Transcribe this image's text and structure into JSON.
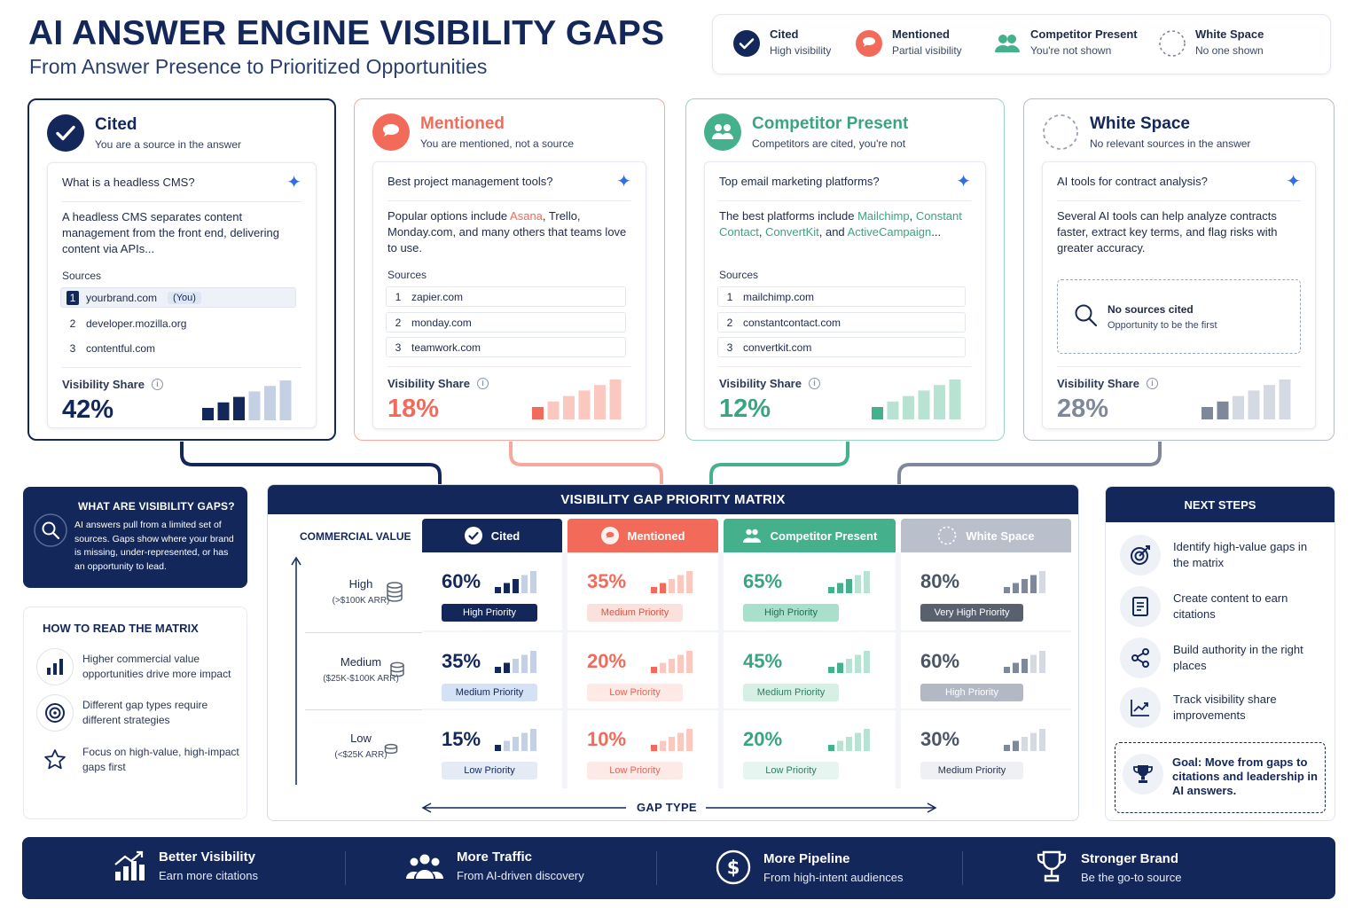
{
  "header": {
    "title": "AI ANSWER ENGINE VISIBILITY GAPS",
    "subtitle": "From Answer Presence to Prioritized Opportunities"
  },
  "legend": [
    {
      "title": "Cited",
      "desc": "High visibility",
      "icon": "check-circle-icon",
      "color": "#13275a"
    },
    {
      "title": "Mentioned",
      "desc": "Partial visibility",
      "icon": "speech-bubble-icon",
      "color": "#f26a5a"
    },
    {
      "title": "Competitor Present",
      "desc": "You're not shown",
      "icon": "people-icon",
      "color": "#45b08c"
    },
    {
      "title": "White Space",
      "desc": "No one shown",
      "icon": "dashed-circle-icon",
      "color": "#7f889b"
    }
  ],
  "cards": {
    "cited": {
      "title": "Cited",
      "subtitle": "You are a source in the answer",
      "question": "What is a headless CMS?",
      "answer": "A headless CMS separates content management from the front end, delivering content via APIs...",
      "sources_label": "Sources",
      "sources": [
        {
          "n": "1",
          "domain": "yourbrand.com",
          "tag": "(You)"
        },
        {
          "n": "2",
          "domain": "developer.mozilla.org"
        },
        {
          "n": "3",
          "domain": "contentful.com"
        }
      ],
      "vs_label": "Visibility Share",
      "vs_value": "42%",
      "vs_fraction": 0.42,
      "color": "#13275a"
    },
    "mentioned": {
      "title": "Mentioned",
      "subtitle": "You are mentioned, not a source",
      "question": "Best project management tools?",
      "answer_pre": "Popular options include ",
      "answer_hl": "Asana",
      "answer_post": ", Trello, Monday.com, and many others that teams love to use.",
      "sources_label": "Sources",
      "sources": [
        {
          "n": "1",
          "domain": "zapier.com"
        },
        {
          "n": "2",
          "domain": "monday.com"
        },
        {
          "n": "3",
          "domain": "teamwork.com"
        }
      ],
      "vs_label": "Visibility Share",
      "vs_value": "18%",
      "vs_fraction": 0.18,
      "color": "#f26a5a"
    },
    "competitor": {
      "title": "Competitor Present",
      "subtitle": "Competitors are cited, you're not",
      "question": "Top email marketing platforms?",
      "answer_pre": "The best platforms include ",
      "hl1": "Mailchimp",
      "sep1": ",",
      "hl2": "Constant Contact",
      "sep2": ", ",
      "hl3": "ConvertKit",
      "sep3": ", and",
      "hl4": "ActiveCampaign",
      "end": "...",
      "sources_label": "Sources",
      "sources": [
        {
          "n": "1",
          "domain": "mailchimp.com"
        },
        {
          "n": "2",
          "domain": "constantcontact.com"
        },
        {
          "n": "3",
          "domain": "convertkit.com"
        }
      ],
      "vs_label": "Visibility Share",
      "vs_value": "12%",
      "vs_fraction": 0.12,
      "color": "#45b08c"
    },
    "white": {
      "title": "White Space",
      "subtitle": "No relevant sources in the answer",
      "question": "AI tools for contract analysis?",
      "answer": "Several AI tools can help analyze contracts faster, extract key terms, and flag risks with greater accuracy.",
      "no_sources_title": "No sources cited",
      "no_sources_desc": "Opportunity to be the first",
      "vs_label": "Visibility Share",
      "vs_value": "28%",
      "vs_fraction": 0.28,
      "color": "#7f889b"
    }
  },
  "what": {
    "title": "WHAT ARE VISIBILITY GAPS?",
    "body": "AI answers pull from a limited set of sources. Gaps show where your brand is missing, under-represented, or has an opportunity to lead."
  },
  "how": {
    "title": "HOW TO READ THE MATRIX",
    "items": [
      {
        "text": "Higher commercial value opportunities drive more impact",
        "icon": "bar-chart-icon"
      },
      {
        "text": "Different gap types require different strategies",
        "icon": "target-icon"
      },
      {
        "text": "Focus on high-value, high-impact gaps first",
        "icon": "star-icon"
      }
    ]
  },
  "matrix": {
    "title": "VISIBILITY GAP PRIORITY MATRIX",
    "y_label": "COMMERCIAL VALUE",
    "x_label": "GAP TYPE",
    "columns": [
      "Cited",
      "Mentioned",
      "Competitor Present",
      "White Space"
    ],
    "rows": [
      {
        "label": "High",
        "range": "(>$100K ARR)"
      },
      {
        "label": "Medium",
        "range": "($25K-$100K ARR)"
      },
      {
        "label": "Low",
        "range": "(<$25K ARR)"
      }
    ],
    "cells": [
      [
        {
          "pct": "60%",
          "priority": "High Priority",
          "v": 0.6
        },
        {
          "pct": "35%",
          "priority": "Medium Priority",
          "v": 0.35
        },
        {
          "pct": "65%",
          "priority": "High Priority",
          "v": 0.65
        },
        {
          "pct": "80%",
          "priority": "Very High Priority",
          "v": 0.8
        }
      ],
      [
        {
          "pct": "35%",
          "priority": "Medium Priority",
          "v": 0.35
        },
        {
          "pct": "20%",
          "priority": "Low Priority",
          "v": 0.2
        },
        {
          "pct": "45%",
          "priority": "Medium Priority",
          "v": 0.45
        },
        {
          "pct": "60%",
          "priority": "High Priority",
          "v": 0.6
        }
      ],
      [
        {
          "pct": "15%",
          "priority": "Low Priority",
          "v": 0.15
        },
        {
          "pct": "10%",
          "priority": "Low Priority",
          "v": 0.1
        },
        {
          "pct": "20%",
          "priority": "Low Priority",
          "v": 0.2
        },
        {
          "pct": "30%",
          "priority": "Medium Priority",
          "v": 0.3
        }
      ]
    ]
  },
  "next_steps": {
    "title": "NEXT STEPS",
    "items": [
      {
        "text": "Identify high-value gaps in the matrix",
        "icon": "target-icon"
      },
      {
        "text": "Create content to earn citations",
        "icon": "document-icon"
      },
      {
        "text": "Build authority in the right places",
        "icon": "share-icon"
      },
      {
        "text": "Track visibility share improvements",
        "icon": "trend-chart-icon"
      }
    ],
    "goal": "Goal: Move from gaps to citations and leadership in AI answers.",
    "goal_icon": "trophy-icon"
  },
  "footer": [
    {
      "title": "Better Visibility",
      "desc": "Earn more citations",
      "icon": "growth-chart-icon"
    },
    {
      "title": "More Traffic",
      "desc": "From AI-driven discovery",
      "icon": "people-icon"
    },
    {
      "title": "More Pipeline",
      "desc": "From high-intent audiences",
      "icon": "dollar-icon"
    },
    {
      "title": "Stronger Brand",
      "desc": "Be the go-to source",
      "icon": "trophy-icon"
    }
  ]
}
